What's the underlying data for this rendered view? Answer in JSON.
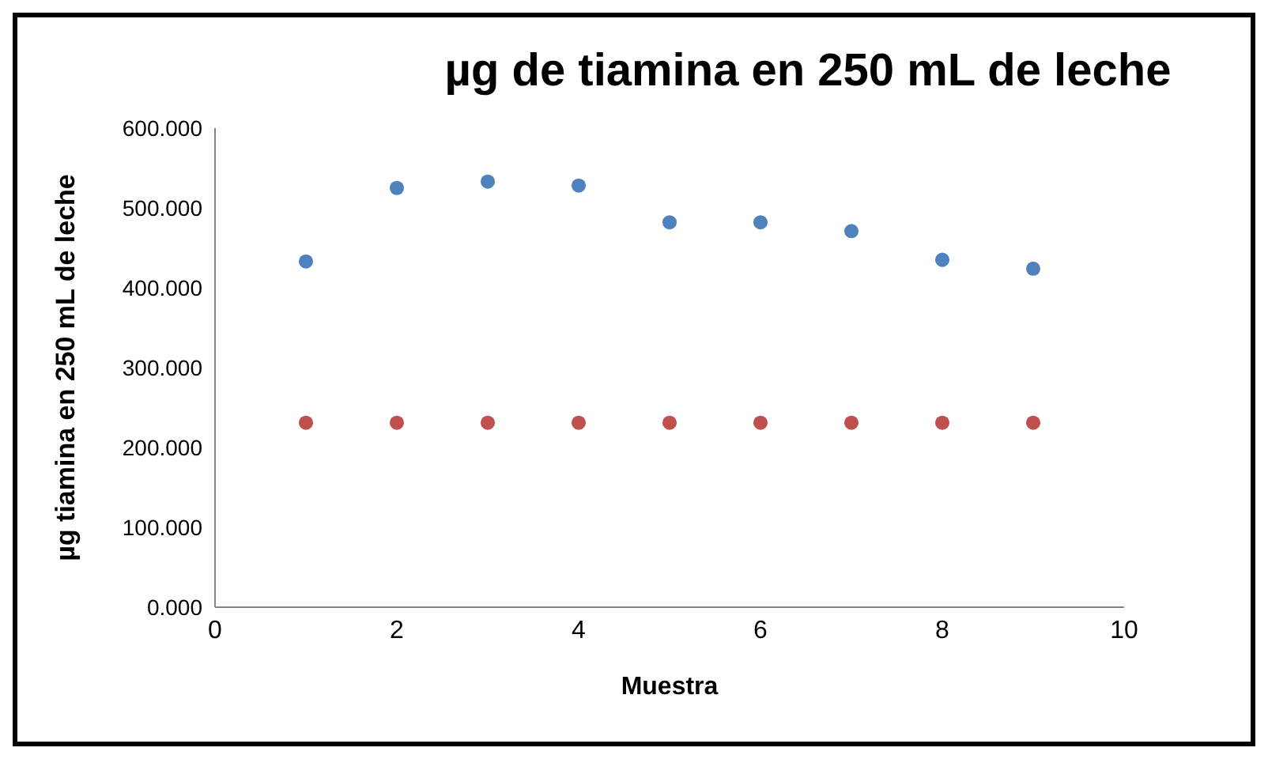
{
  "chart_data": {
    "type": "scatter",
    "title": "µg de tiamina en 250 mL de leche",
    "xlabel": "Muestra",
    "ylabel": "µg tiamina en 250 mL de leche",
    "x": [
      1,
      2,
      3,
      4,
      5,
      6,
      7,
      8,
      9
    ],
    "series": [
      {
        "color": "#4f81bd",
        "values": [
          433,
          525,
          533,
          528,
          482,
          482,
          471,
          435,
          424
        ]
      },
      {
        "color": "#c0504d",
        "values": [
          231,
          231,
          231,
          231,
          231,
          231,
          231,
          231,
          231
        ]
      }
    ],
    "xlim": [
      0,
      10
    ],
    "xticks": [
      0,
      2,
      4,
      6,
      8,
      10
    ],
    "ylim": [
      0,
      600
    ],
    "yticks": [
      {
        "value": 0,
        "label": "0.000"
      },
      {
        "value": 100,
        "label": "100.000"
      },
      {
        "value": 200,
        "label": "200.000"
      },
      {
        "value": 300,
        "label": "300.000"
      },
      {
        "value": 400,
        "label": "400.000"
      },
      {
        "value": 500,
        "label": "500.000"
      },
      {
        "value": 600,
        "label": "600.000"
      }
    ],
    "marker": "circle",
    "grid": false,
    "legend": false
  }
}
